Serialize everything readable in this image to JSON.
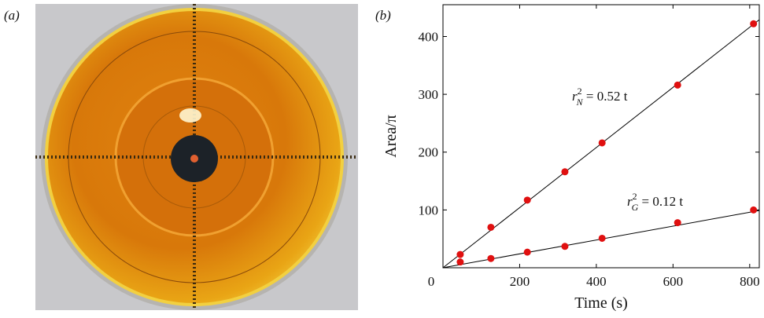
{
  "photo": {
    "panel_label": "(a)"
  },
  "chart_data": {
    "type": "scatter",
    "panel_label": "(b)",
    "xlabel": "Time (s)",
    "ylabel": "Area/π",
    "xlim": [
      0,
      825
    ],
    "ylim": [
      0,
      455
    ],
    "xticks": [
      0,
      200,
      400,
      600,
      800
    ],
    "yticks": [
      100,
      200,
      300,
      400
    ],
    "series": [
      {
        "color": "#e01010",
        "x": [
          45,
          125,
          220,
          318,
          415,
          612,
          810
        ],
        "values": [
          23,
          70,
          117,
          166,
          216,
          316,
          422
        ]
      },
      {
        "color": "#e01010",
        "x": [
          45,
          125,
          220,
          318,
          415,
          612,
          810
        ],
        "values": [
          10,
          16,
          27,
          37,
          51,
          78,
          100
        ]
      }
    ],
    "fit_lines": [
      {
        "slope": 0.52,
        "label": {
          "symbol": "r",
          "sup": "2",
          "sub": "N",
          "text": " = 0.52 t"
        }
      },
      {
        "slope": 0.12,
        "label": {
          "symbol": "r",
          "sup": "2",
          "sub": "G",
          "text": " = 0.12 t"
        }
      }
    ]
  }
}
